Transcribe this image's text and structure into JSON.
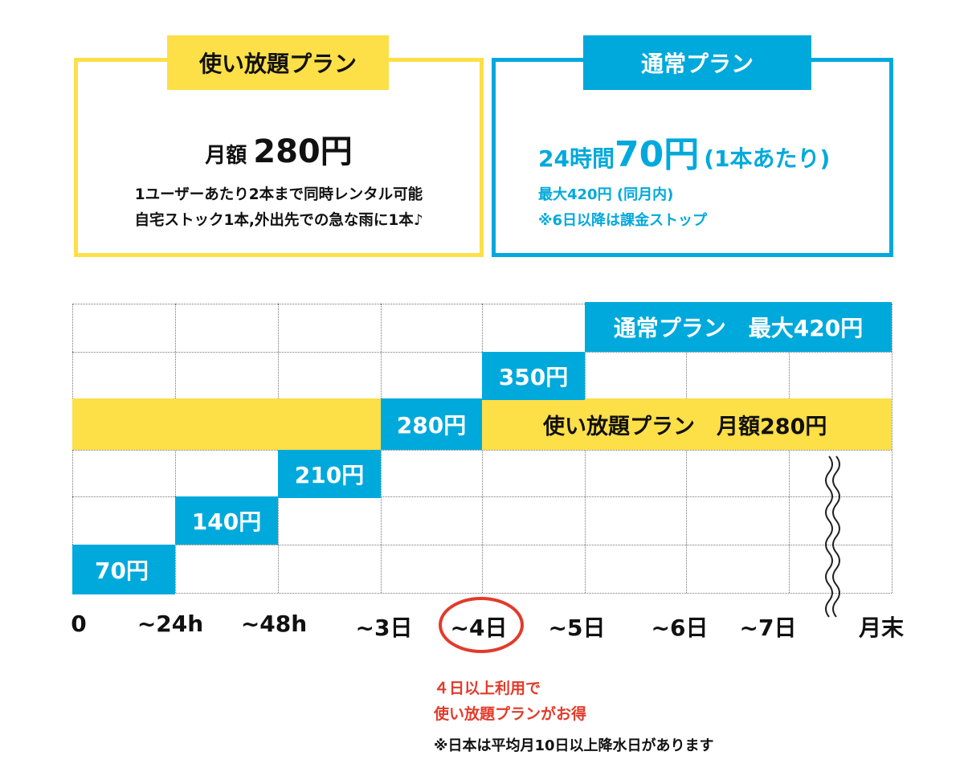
{
  "plans": {
    "unlimited": {
      "tab": "使い放題プラン",
      "price_label": "月額",
      "price_value": "280円",
      "desc_1": "1ユーザーあたり2本まで同時レンタル可能",
      "desc_2": "自宅ストック1本,外出先での急な雨に1本♪",
      "color": "#fddf47"
    },
    "standard": {
      "tab": "通常プラン",
      "price_prefix": "24時間",
      "price_value": "70円",
      "price_suffix": "(1本あたり)",
      "note_1": "最大420円 (同月内)",
      "note_2": "※6日以降は課金ストップ",
      "color": "#00a9dc"
    }
  },
  "chart": {
    "x_labels": [
      "0",
      "~24h",
      "~48h",
      "~3日",
      "~4日",
      "~5日",
      "~6日",
      "~7日",
      "月末"
    ],
    "steps": [
      "70円",
      "140円",
      "210円",
      "280円",
      "350円"
    ],
    "standard_max_label": "通常プラン　最大420円",
    "unlimited_band_label": "使い放題プラン　月額280円",
    "highlight_label": "~4日",
    "break_icon": "wavy-break-icon"
  },
  "notes": {
    "red_1": "４日以上利用で",
    "red_2": "使い放題プランがお得",
    "black": "※日本は平均月10日以上降水日があります",
    "accent_red": "#e23b2b"
  }
}
